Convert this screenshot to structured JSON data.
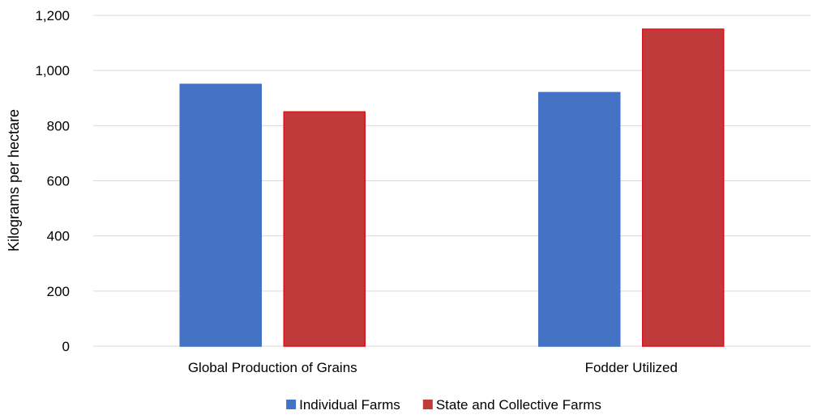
{
  "chart_data": {
    "type": "bar",
    "title": "",
    "xlabel": "",
    "ylabel": "Kilograms per hectare",
    "ylim": [
      0,
      1200
    ],
    "yticks": [
      "0",
      "200",
      "400",
      "600",
      "800",
      "1,000",
      "1,200"
    ],
    "ytick_values": [
      0,
      200,
      400,
      600,
      800,
      1000,
      1200
    ],
    "categories": [
      "Global Production of Grains",
      "Fodder Utilized"
    ],
    "series": [
      {
        "name": "Individual Farms",
        "values": [
          950,
          920
        ],
        "color": "#4472C4",
        "edge": "#4472C4"
      },
      {
        "name": "State and Collective Farms",
        "values": [
          850,
          1150
        ],
        "color": "#C0393B",
        "edge": "#E0101A"
      }
    ],
    "grid": true,
    "legend_position": "bottom"
  }
}
